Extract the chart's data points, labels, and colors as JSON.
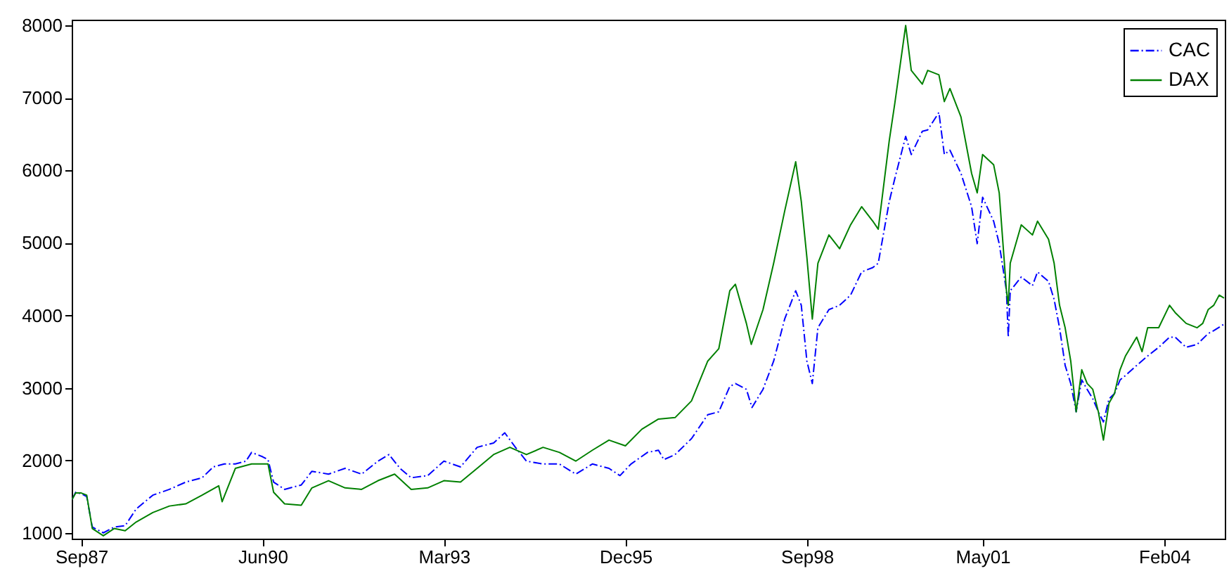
{
  "chart_data": {
    "type": "line",
    "legend": "top right",
    "grid": false,
    "marker": "none",
    "xlim": [
      "1987-07-10",
      "2005-01-01"
    ],
    "ylim": [
      920,
      8080
    ],
    "yticks": [
      1000,
      2000,
      3000,
      4000,
      5000,
      6000,
      7000,
      8000
    ],
    "xticks": [
      {
        "value": "1987-09-01",
        "label": "Sep87"
      },
      {
        "value": "1990-06-01",
        "label": "Jun90"
      },
      {
        "value": "1993-03-01",
        "label": "Mar93"
      },
      {
        "value": "1995-12-01",
        "label": "Dec95"
      },
      {
        "value": "1998-09-01",
        "label": "Sep98"
      },
      {
        "value": "2001-05-01",
        "label": "May01"
      },
      {
        "value": "2004-02-01",
        "label": "Feb04"
      }
    ],
    "series": [
      {
        "name": "CAC",
        "color": "#0000ff",
        "line_style": "dashed",
        "x": [
          "1987-07-12",
          "1987-08",
          "1987-09",
          "1987-10",
          "1987-11",
          "1988-01",
          "1988-03",
          "1988-05",
          "1988-07",
          "1988-10",
          "1989-01",
          "1989-04",
          "1989-07",
          "1989-09",
          "1989-11",
          "1990-01",
          "1990-03",
          "1990-04",
          "1990-06",
          "1990-07",
          "1990-08",
          "1990-10",
          "1991-01",
          "1991-03",
          "1991-06",
          "1991-09",
          "1991-12",
          "1992-03",
          "1992-05",
          "1992-07",
          "1992-09",
          "1992-12",
          "1993-03",
          "1993-06",
          "1993-09",
          "1993-12",
          "1994-02",
          "1994-04",
          "1994-06",
          "1994-09",
          "1994-12",
          "1995-03",
          "1995-06",
          "1995-09",
          "1995-11",
          "1996-01",
          "1996-04",
          "1996-06",
          "1996-07",
          "1996-09",
          "1996-12",
          "1997-03",
          "1997-05",
          "1997-07",
          "1997-08",
          "1997-10",
          "1997-11",
          "1998-01",
          "1998-03",
          "1998-05",
          "1998-07",
          "1998-08",
          "1998-09",
          "1998-10",
          "1998-11",
          "1999-01",
          "1999-03",
          "1999-05",
          "1999-07",
          "1999-09",
          "1999-10",
          "1999-12",
          "2000-01",
          "2000-03",
          "2000-04",
          "2000-06",
          "2000-07",
          "2000-09",
          "2000-10",
          "2000-11",
          "2001-01",
          "2001-03",
          "2001-04",
          "2001-05",
          "2001-07",
          "2001-08",
          "2001-09-10",
          "2001-09-20",
          "2001-10",
          "2001-12",
          "2002-02",
          "2002-03",
          "2002-05",
          "2002-06",
          "2002-07",
          "2002-08",
          "2002-09",
          "2002-10",
          "2002-11",
          "2002-12",
          "2003-01",
          "2003-02",
          "2003-03",
          "2003-04",
          "2003-05",
          "2003-06",
          "2003-07",
          "2003-09",
          "2003-11",
          "2004-01",
          "2004-03",
          "2004-04",
          "2004-06",
          "2004-08",
          "2004-10",
          "2004-11",
          "2004-12-28"
        ],
        "values": [
          1460,
          1560,
          1540,
          1500,
          1080,
          1000,
          1080,
          1100,
          1330,
          1520,
          1600,
          1700,
          1760,
          1910,
          1950,
          1950,
          1990,
          2110,
          2050,
          2010,
          1700,
          1600,
          1660,
          1850,
          1810,
          1890,
          1810,
          1990,
          2080,
          1890,
          1760,
          1790,
          1990,
          1910,
          2180,
          2240,
          2380,
          2180,
          1990,
          1950,
          1950,
          1810,
          1950,
          1890,
          1790,
          1950,
          2110,
          2140,
          2010,
          2080,
          2300,
          2630,
          2670,
          3020,
          3060,
          2980,
          2730,
          2980,
          3370,
          3950,
          4340,
          4140,
          3370,
          3060,
          3830,
          4080,
          4140,
          4280,
          4600,
          4660,
          4720,
          5570,
          5890,
          6470,
          6220,
          6540,
          6560,
          6800,
          6220,
          6280,
          5960,
          5500,
          4990,
          5630,
          5300,
          4990,
          4340,
          3700,
          4340,
          4530,
          4410,
          4600,
          4470,
          4220,
          3830,
          3310,
          3060,
          2670,
          3110,
          2980,
          2850,
          2670,
          2530,
          2850,
          2920,
          3110,
          3170,
          3310,
          3440,
          3560,
          3700,
          3700,
          3560,
          3600,
          3750,
          3790,
          3880
        ]
      },
      {
        "name": "DAX",
        "color": "#008000",
        "line_style": "solid",
        "x": [
          "1987-07-12",
          "1987-08",
          "1987-09",
          "1987-10",
          "1987-11",
          "1988-01",
          "1988-03",
          "1988-05",
          "1988-07",
          "1988-10",
          "1989-01",
          "1989-04",
          "1989-07",
          "1989-10",
          "1989-10-20",
          "1990-01",
          "1990-04",
          "1990-07",
          "1990-08",
          "1990-10",
          "1991-01",
          "1991-03",
          "1991-06",
          "1991-09",
          "1991-12",
          "1992-03",
          "1992-06",
          "1992-09",
          "1992-12",
          "1993-03",
          "1993-06",
          "1993-09",
          "1993-12",
          "1994-03",
          "1994-06",
          "1994-09",
          "1994-12",
          "1995-03",
          "1995-06",
          "1995-09",
          "1995-12",
          "1996-03",
          "1996-06",
          "1996-09",
          "1996-12",
          "1997-03",
          "1997-05",
          "1997-07",
          "1997-08",
          "1997-10",
          "1997-10-28",
          "1998-01",
          "1998-03",
          "1998-05",
          "1998-07",
          "1998-08",
          "1998-09",
          "1998-10",
          "1998-11",
          "1999-01",
          "1999-03",
          "1999-05",
          "1999-07",
          "1999-09",
          "1999-10",
          "1999-12",
          "2000-01",
          "2000-03",
          "2000-04",
          "2000-06",
          "2000-07",
          "2000-09",
          "2000-10",
          "2000-11",
          "2001-01",
          "2001-03",
          "2001-04",
          "2001-05",
          "2001-07",
          "2001-08",
          "2001-09-10",
          "2001-09-20",
          "2001-10",
          "2001-12",
          "2002-02",
          "2002-03",
          "2002-05",
          "2002-06",
          "2002-07",
          "2002-08",
          "2002-09",
          "2002-10",
          "2002-11",
          "2002-12",
          "2003-01",
          "2003-02",
          "2003-03",
          "2003-04",
          "2003-05",
          "2003-06",
          "2003-07",
          "2003-09",
          "2003-10",
          "2003-11",
          "2004-01",
          "2004-03",
          "2004-04",
          "2004-06",
          "2004-08",
          "2004-09",
          "2004-10",
          "2004-11",
          "2004-12",
          "2004-12-28"
        ],
        "values": [
          1460,
          1550,
          1550,
          1520,
          1060,
          960,
          1060,
          1030,
          1150,
          1280,
          1370,
          1400,
          1520,
          1650,
          1430,
          1890,
          1950,
          1950,
          1560,
          1400,
          1380,
          1620,
          1720,
          1620,
          1600,
          1720,
          1810,
          1600,
          1620,
          1720,
          1700,
          1890,
          2080,
          2180,
          2080,
          2180,
          2110,
          1990,
          2140,
          2280,
          2200,
          2430,
          2570,
          2590,
          2820,
          3370,
          3540,
          4340,
          4430,
          3890,
          3600,
          4080,
          4720,
          5440,
          6120,
          5570,
          4800,
          3950,
          4720,
          5110,
          4920,
          5250,
          5500,
          5300,
          5190,
          6410,
          6930,
          8000,
          7380,
          7190,
          7380,
          7320,
          6950,
          7130,
          6740,
          5960,
          5690,
          6220,
          6080,
          5690,
          4340,
          4140,
          4720,
          5250,
          5110,
          5300,
          5050,
          4720,
          4140,
          3830,
          3370,
          2670,
          3250,
          3060,
          2980,
          2670,
          2280,
          2790,
          2920,
          3250,
          3440,
          3700,
          3500,
          3830,
          3830,
          4140,
          4040,
          3890,
          3830,
          3890,
          4080,
          4140,
          4280,
          4240
        ]
      }
    ]
  }
}
